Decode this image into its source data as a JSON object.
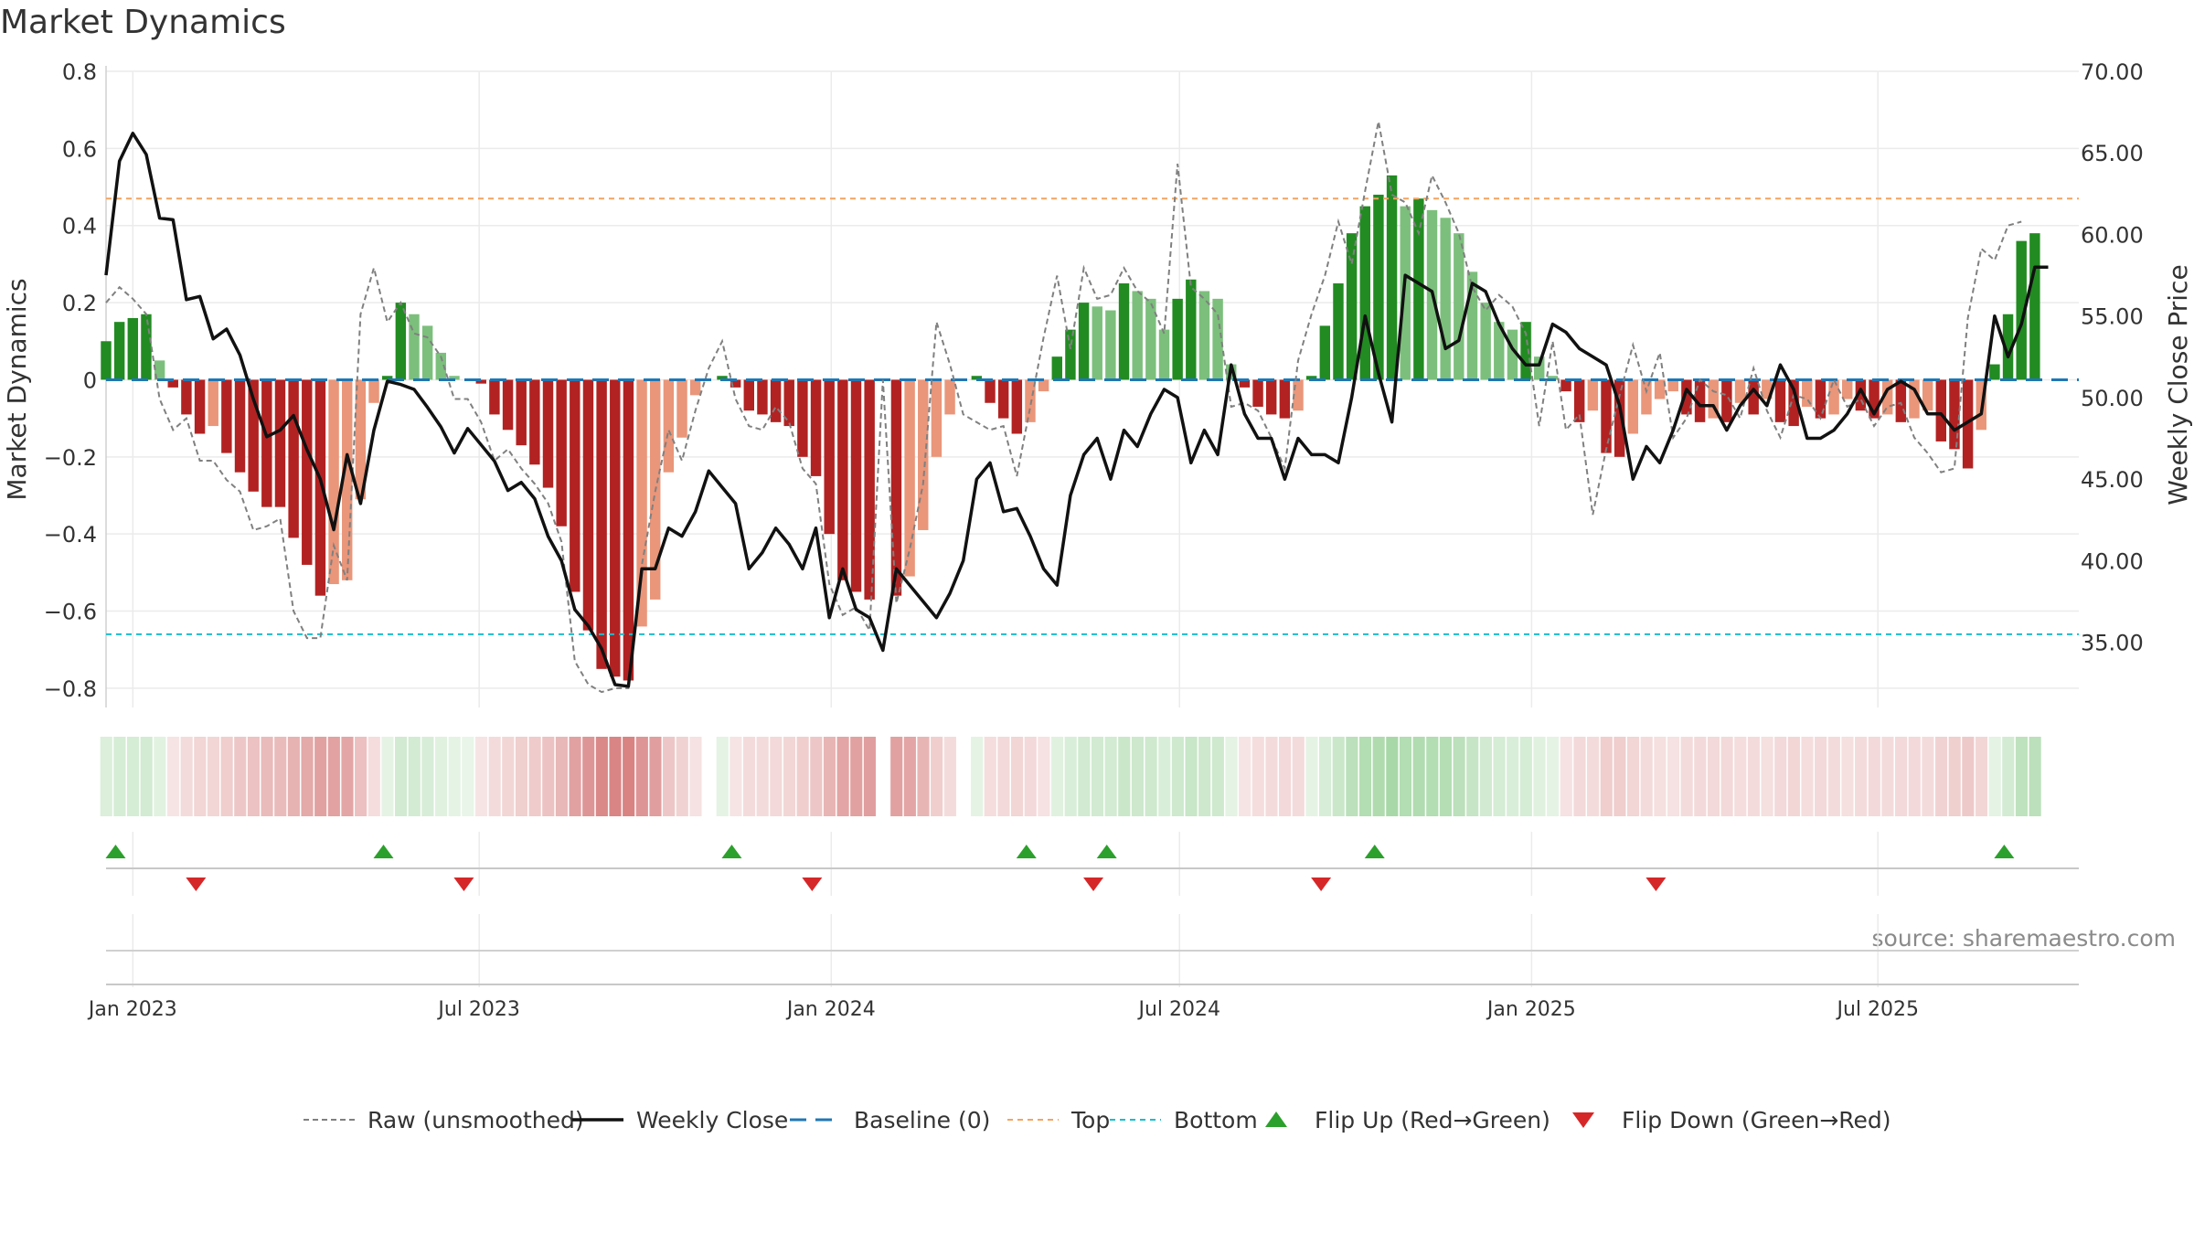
{
  "chart_data": {
    "type": "bar",
    "title": "Market Dynamics",
    "source": "source: sharemaestro.com",
    "ylabel_left": "Market Dynamics",
    "ylabel_right": "Weekly Close Price",
    "ylim_left": [
      -0.85,
      0.8
    ],
    "ylim_right": [
      31.0,
      70.0
    ],
    "yticks_left": [
      0.8,
      0.6,
      0.4,
      0.2,
      0,
      -0.2,
      -0.4,
      -0.6,
      -0.8
    ],
    "ytick_labels_left": [
      "0.8",
      "0.6",
      "0.4",
      "0.2",
      "0",
      "−0.2",
      "−0.4",
      "−0.6",
      "−0.8"
    ],
    "yticks_right": [
      70,
      65,
      60,
      55,
      50,
      45,
      40,
      35
    ],
    "ytick_labels_right": [
      "70.00",
      "65.00",
      "60.00",
      "55.00",
      "50.00",
      "45.00",
      "40.00",
      "35.00"
    ],
    "x_range": [
      "2022-12-18",
      "2025-10-14"
    ],
    "xticks": [
      {
        "date": "2023-01-01",
        "label": "Jan 2023"
      },
      {
        "date": "2023-07-01",
        "label": "Jul 2023"
      },
      {
        "date": "2024-01-01",
        "label": "Jan 2024"
      },
      {
        "date": "2024-07-01",
        "label": "Jul 2024"
      },
      {
        "date": "2025-01-01",
        "label": "Jan 2025"
      },
      {
        "date": "2025-07-01",
        "label": "Jul 2025"
      }
    ],
    "first_week": "2022-12-18",
    "week_step_days": 7,
    "momentum": [
      0.1,
      0.15,
      0.16,
      0.17,
      0.05,
      -0.02,
      -0.09,
      -0.14,
      -0.12,
      -0.19,
      -0.24,
      -0.29,
      -0.33,
      -0.33,
      -0.41,
      -0.48,
      -0.56,
      -0.53,
      -0.52,
      -0.31,
      -0.06,
      0.01,
      0.2,
      0.17,
      0.14,
      0.07,
      0.01,
      0.0,
      -0.01,
      -0.09,
      -0.13,
      -0.17,
      -0.22,
      -0.28,
      -0.38,
      -0.55,
      -0.65,
      -0.75,
      -0.77,
      -0.78,
      -0.64,
      -0.57,
      -0.24,
      -0.15,
      -0.04,
      0.0,
      0.01,
      -0.02,
      -0.08,
      -0.09,
      -0.11,
      -0.12,
      -0.2,
      -0.25,
      -0.4,
      -0.52,
      -0.55,
      -0.57,
      0.0,
      -0.56,
      -0.51,
      -0.39,
      -0.2,
      -0.09,
      0.0,
      0.01,
      -0.06,
      -0.1,
      -0.14,
      -0.11,
      -0.03,
      0.06,
      0.13,
      0.2,
      0.19,
      0.18,
      0.25,
      0.23,
      0.21,
      0.13,
      0.21,
      0.26,
      0.23,
      0.21,
      0.04,
      -0.02,
      -0.07,
      -0.09,
      -0.1,
      -0.08,
      0.01,
      0.14,
      0.25,
      0.38,
      0.45,
      0.48,
      0.53,
      0.45,
      0.47,
      0.44,
      0.42,
      0.38,
      0.28,
      0.2,
      0.15,
      0.13,
      0.15,
      0.06,
      0.01,
      -0.03,
      -0.11,
      -0.08,
      -0.19,
      -0.2,
      -0.14,
      -0.09,
      -0.05,
      -0.03,
      -0.09,
      -0.11,
      -0.1,
      -0.11,
      -0.06,
      -0.09,
      -0.05,
      -0.11,
      -0.12,
      -0.07,
      -0.1,
      -0.09,
      -0.05,
      -0.08,
      -0.1,
      -0.09,
      -0.11,
      -0.1,
      -0.08,
      -0.16,
      -0.18,
      -0.23,
      -0.13,
      0.04,
      0.17,
      0.36,
      0.38
    ],
    "raw": [
      0.2,
      0.24,
      0.21,
      0.17,
      -0.05,
      -0.13,
      -0.1,
      -0.21,
      -0.21,
      -0.26,
      -0.29,
      -0.39,
      -0.38,
      -0.36,
      -0.6,
      -0.67,
      -0.67,
      -0.43,
      -0.52,
      0.17,
      0.29,
      0.15,
      0.2,
      0.12,
      0.11,
      0.06,
      -0.05,
      -0.05,
      -0.11,
      -0.21,
      -0.18,
      -0.23,
      -0.27,
      -0.32,
      -0.42,
      -0.73,
      -0.79,
      -0.81,
      -0.8,
      -0.8,
      -0.48,
      -0.29,
      -0.13,
      -0.21,
      -0.08,
      0.03,
      0.1,
      -0.05,
      -0.12,
      -0.13,
      -0.07,
      -0.11,
      -0.23,
      -0.27,
      -0.53,
      -0.61,
      -0.59,
      -0.65,
      0.0,
      -0.58,
      -0.44,
      -0.27,
      0.15,
      0.04,
      -0.09,
      -0.11,
      -0.13,
      -0.12,
      -0.25,
      -0.07,
      0.11,
      0.27,
      0.08,
      0.29,
      0.21,
      0.22,
      0.29,
      0.23,
      0.2,
      0.12,
      0.56,
      0.24,
      0.21,
      0.17,
      -0.07,
      -0.06,
      -0.08,
      -0.15,
      -0.23,
      0.05,
      0.17,
      0.27,
      0.41,
      0.3,
      0.49,
      0.67,
      0.48,
      0.46,
      0.38,
      0.53,
      0.46,
      0.38,
      0.24,
      0.18,
      0.22,
      0.19,
      0.12,
      -0.12,
      0.1,
      -0.13,
      -0.09,
      -0.35,
      -0.18,
      -0.04,
      0.09,
      -0.03,
      0.07,
      -0.15,
      -0.1,
      0.0,
      -0.03,
      -0.04,
      -0.1,
      0.03,
      -0.08,
      -0.15,
      -0.04,
      -0.05,
      -0.1,
      0.0,
      -0.07,
      -0.05,
      -0.12,
      -0.07,
      -0.06,
      -0.15,
      -0.19,
      -0.24,
      -0.23,
      0.16,
      0.34,
      0.31,
      0.4,
      0.41
    ],
    "price": [
      57.5,
      64.5,
      66.2,
      64.9,
      61.0,
      60.9,
      56.0,
      56.2,
      53.6,
      54.2,
      52.6,
      49.9,
      47.6,
      48.0,
      48.9,
      46.8,
      45.0,
      41.9,
      46.5,
      43.5,
      48.0,
      51.0,
      50.8,
      50.5,
      49.4,
      48.2,
      46.6,
      48.1,
      47.1,
      46.1,
      44.3,
      44.8,
      43.8,
      41.5,
      40.0,
      37.0,
      36.0,
      34.6,
      32.4,
      32.3,
      39.5,
      39.5,
      42.0,
      41.5,
      43.0,
      45.5,
      44.5,
      43.5,
      39.5,
      40.5,
      42.0,
      41.0,
      39.5,
      42.0,
      36.5,
      39.5,
      37.0,
      36.5,
      34.5,
      39.5,
      38.5,
      37.5,
      36.5,
      38.0,
      40.0,
      45.0,
      46.0,
      43.0,
      43.2,
      41.5,
      39.5,
      38.5,
      44.0,
      46.5,
      47.5,
      45.0,
      48.0,
      47.0,
      49.0,
      50.5,
      50.0,
      46.0,
      48.0,
      46.5,
      52.0,
      49.0,
      47.5,
      47.5,
      45.0,
      47.5,
      46.5,
      46.5,
      46.0,
      50.0,
      55.0,
      51.5,
      48.5,
      57.5,
      57.0,
      56.5,
      53.0,
      53.5,
      57.0,
      56.5,
      54.5,
      53.0,
      52.0,
      52.0,
      54.5,
      54.0,
      53.0,
      52.5,
      52.0,
      49.5,
      45.0,
      47.0,
      46.0,
      48.0,
      50.5,
      49.5,
      49.5,
      48.0,
      49.5,
      50.5,
      49.5,
      52.0,
      50.5,
      47.5,
      47.5,
      48.0,
      49.0,
      50.5,
      49.0,
      50.5,
      51.0,
      50.5,
      49.0,
      49.0,
      48.0,
      48.5,
      49.0,
      55.0,
      52.5,
      54.5,
      58.0,
      58.0
    ],
    "top_line": 0.47,
    "bottom_line": -0.66,
    "baseline": 0,
    "flip_up_dates": [
      "2022-12-23",
      "2023-05-12",
      "2023-11-10",
      "2024-04-12",
      "2024-05-24",
      "2024-10-11",
      "2025-09-05"
    ],
    "flip_down_dates": [
      "2023-02-03",
      "2023-06-23",
      "2023-12-22",
      "2024-05-17",
      "2024-09-13",
      "2025-03-07"
    ],
    "legend": [
      {
        "label": "Raw (unsmoothed)",
        "style": "dashed-gray-line"
      },
      {
        "label": "Weekly Close",
        "style": "solid-black-line"
      },
      {
        "label": "Baseline (0)",
        "style": "dashed-blue-line"
      },
      {
        "label": "Top",
        "style": "dashed-orange-line"
      },
      {
        "label": "Bottom",
        "style": "dashed-cyan-line"
      },
      {
        "label": "Flip Up (Red→Green)",
        "style": "green-up-triangle"
      },
      {
        "label": "Flip Down (Green→Red)",
        "style": "red-down-triangle"
      }
    ],
    "legend_position": "bottom-center",
    "grid": true,
    "colors": {
      "green_strong": "#228b22",
      "green_light": "#7cbf7c",
      "red_strong": "#b22222",
      "red_light": "#e9967a",
      "raw_line": "#808080",
      "price_line": "#111111",
      "baseline": "#1f77b4",
      "top": "#f4a460",
      "bottom": "#17becf",
      "flip_up": "#2ca02c",
      "flip_down": "#d62728"
    }
  }
}
